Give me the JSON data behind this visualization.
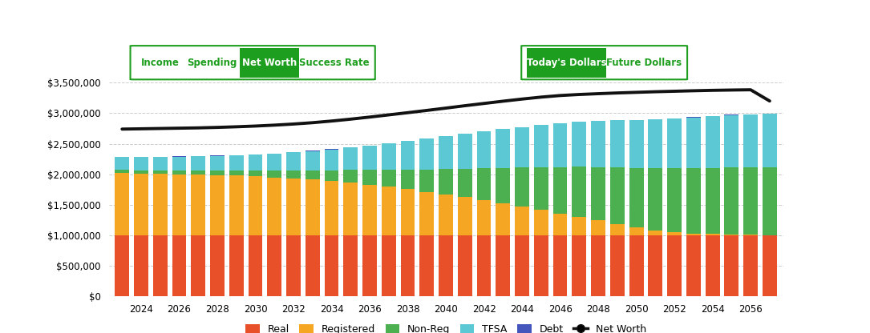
{
  "years": [
    2023,
    2024,
    2025,
    2026,
    2027,
    2028,
    2029,
    2030,
    2031,
    2032,
    2033,
    2034,
    2035,
    2036,
    2037,
    2038,
    2039,
    2040,
    2041,
    2042,
    2043,
    2044,
    2045,
    2046,
    2047,
    2048,
    2049,
    2050,
    2051,
    2052,
    2053,
    2054,
    2055,
    2056,
    2057
  ],
  "real": [
    1000000,
    1000000,
    1000000,
    1000000,
    1000000,
    1000000,
    1000000,
    1000000,
    1000000,
    1000000,
    1000000,
    1000000,
    1000000,
    1000000,
    1000000,
    1000000,
    1000000,
    1000000,
    1000000,
    1000000,
    1000000,
    1000000,
    1000000,
    1000000,
    1000000,
    1000000,
    1000000,
    1000000,
    1000000,
    1000000,
    1000000,
    1000000,
    1000000,
    1000000,
    1000000
  ],
  "registered": [
    1020000,
    1010000,
    1005000,
    1000000,
    995000,
    988000,
    978000,
    965000,
    950000,
    932000,
    912000,
    888000,
    860000,
    828000,
    793000,
    755000,
    714000,
    670000,
    624000,
    575000,
    524000,
    471000,
    416000,
    360000,
    302000,
    243000,
    184000,
    125000,
    80000,
    50000,
    30000,
    20000,
    15000,
    10000,
    5000
  ],
  "nonreg": [
    50000,
    55000,
    60000,
    65000,
    70000,
    78000,
    88000,
    100000,
    115000,
    133000,
    155000,
    180000,
    210000,
    243000,
    280000,
    320000,
    365000,
    413000,
    465000,
    520000,
    578000,
    638000,
    700000,
    760000,
    820000,
    877000,
    930000,
    980000,
    1020000,
    1050000,
    1070000,
    1085000,
    1095000,
    1100000,
    1105000
  ],
  "tfsa": [
    210000,
    215000,
    220000,
    225000,
    230000,
    238000,
    248000,
    260000,
    275000,
    293000,
    315000,
    340000,
    368000,
    400000,
    434000,
    468000,
    502000,
    537000,
    572000,
    605000,
    636000,
    665000,
    690000,
    713000,
    733000,
    752000,
    769000,
    786000,
    802000,
    818000,
    833000,
    848000,
    862000,
    875000,
    885000
  ],
  "debt": [
    5000,
    5000,
    4000,
    4000,
    4000,
    3000,
    3000,
    3000,
    2000,
    2000,
    2000,
    2000,
    2000,
    1000,
    1000,
    1000,
    1000,
    1000,
    1000,
    1000,
    1000,
    1000,
    1000,
    1000,
    1000,
    1000,
    1000,
    1000,
    1000,
    1000,
    1000,
    1000,
    1000,
    1000,
    1000
  ],
  "net_worth": [
    2740000,
    2745000,
    2750000,
    2755000,
    2760000,
    2768000,
    2778000,
    2790000,
    2805000,
    2823000,
    2845000,
    2872000,
    2903000,
    2937000,
    2973000,
    3009000,
    3046000,
    3084000,
    3123000,
    3160000,
    3197000,
    3232000,
    3264000,
    3290000,
    3307000,
    3320000,
    3332000,
    3342000,
    3352000,
    3360000,
    3368000,
    3375000,
    3380000,
    3384000,
    3200000
  ],
  "colors": {
    "real": "#E8502A",
    "registered": "#F5A623",
    "nonreg": "#4CAF50",
    "tfsa": "#5BC8D4",
    "debt": "#4455BB"
  },
  "net_worth_color": "#111111",
  "background_color": "#ffffff",
  "plot_bg_color": "#ffffff",
  "grid_color": "#cccccc",
  "ylim": [
    0,
    3500000
  ],
  "yticks": [
    0,
    500000,
    1000000,
    1500000,
    2000000,
    2500000,
    3000000,
    3500000
  ],
  "bar_width": 0.75,
  "nav_buttons_left": [
    "Income",
    "Spending",
    "Net Worth",
    "Success Rate"
  ],
  "nav_active_left": "Net Worth",
  "nav_buttons_right": [
    "Today's Dollars",
    "Future Dollars"
  ],
  "nav_active_right": "Today's Dollars",
  "green_color": "#1E9E1E",
  "white_color": "#ffffff"
}
